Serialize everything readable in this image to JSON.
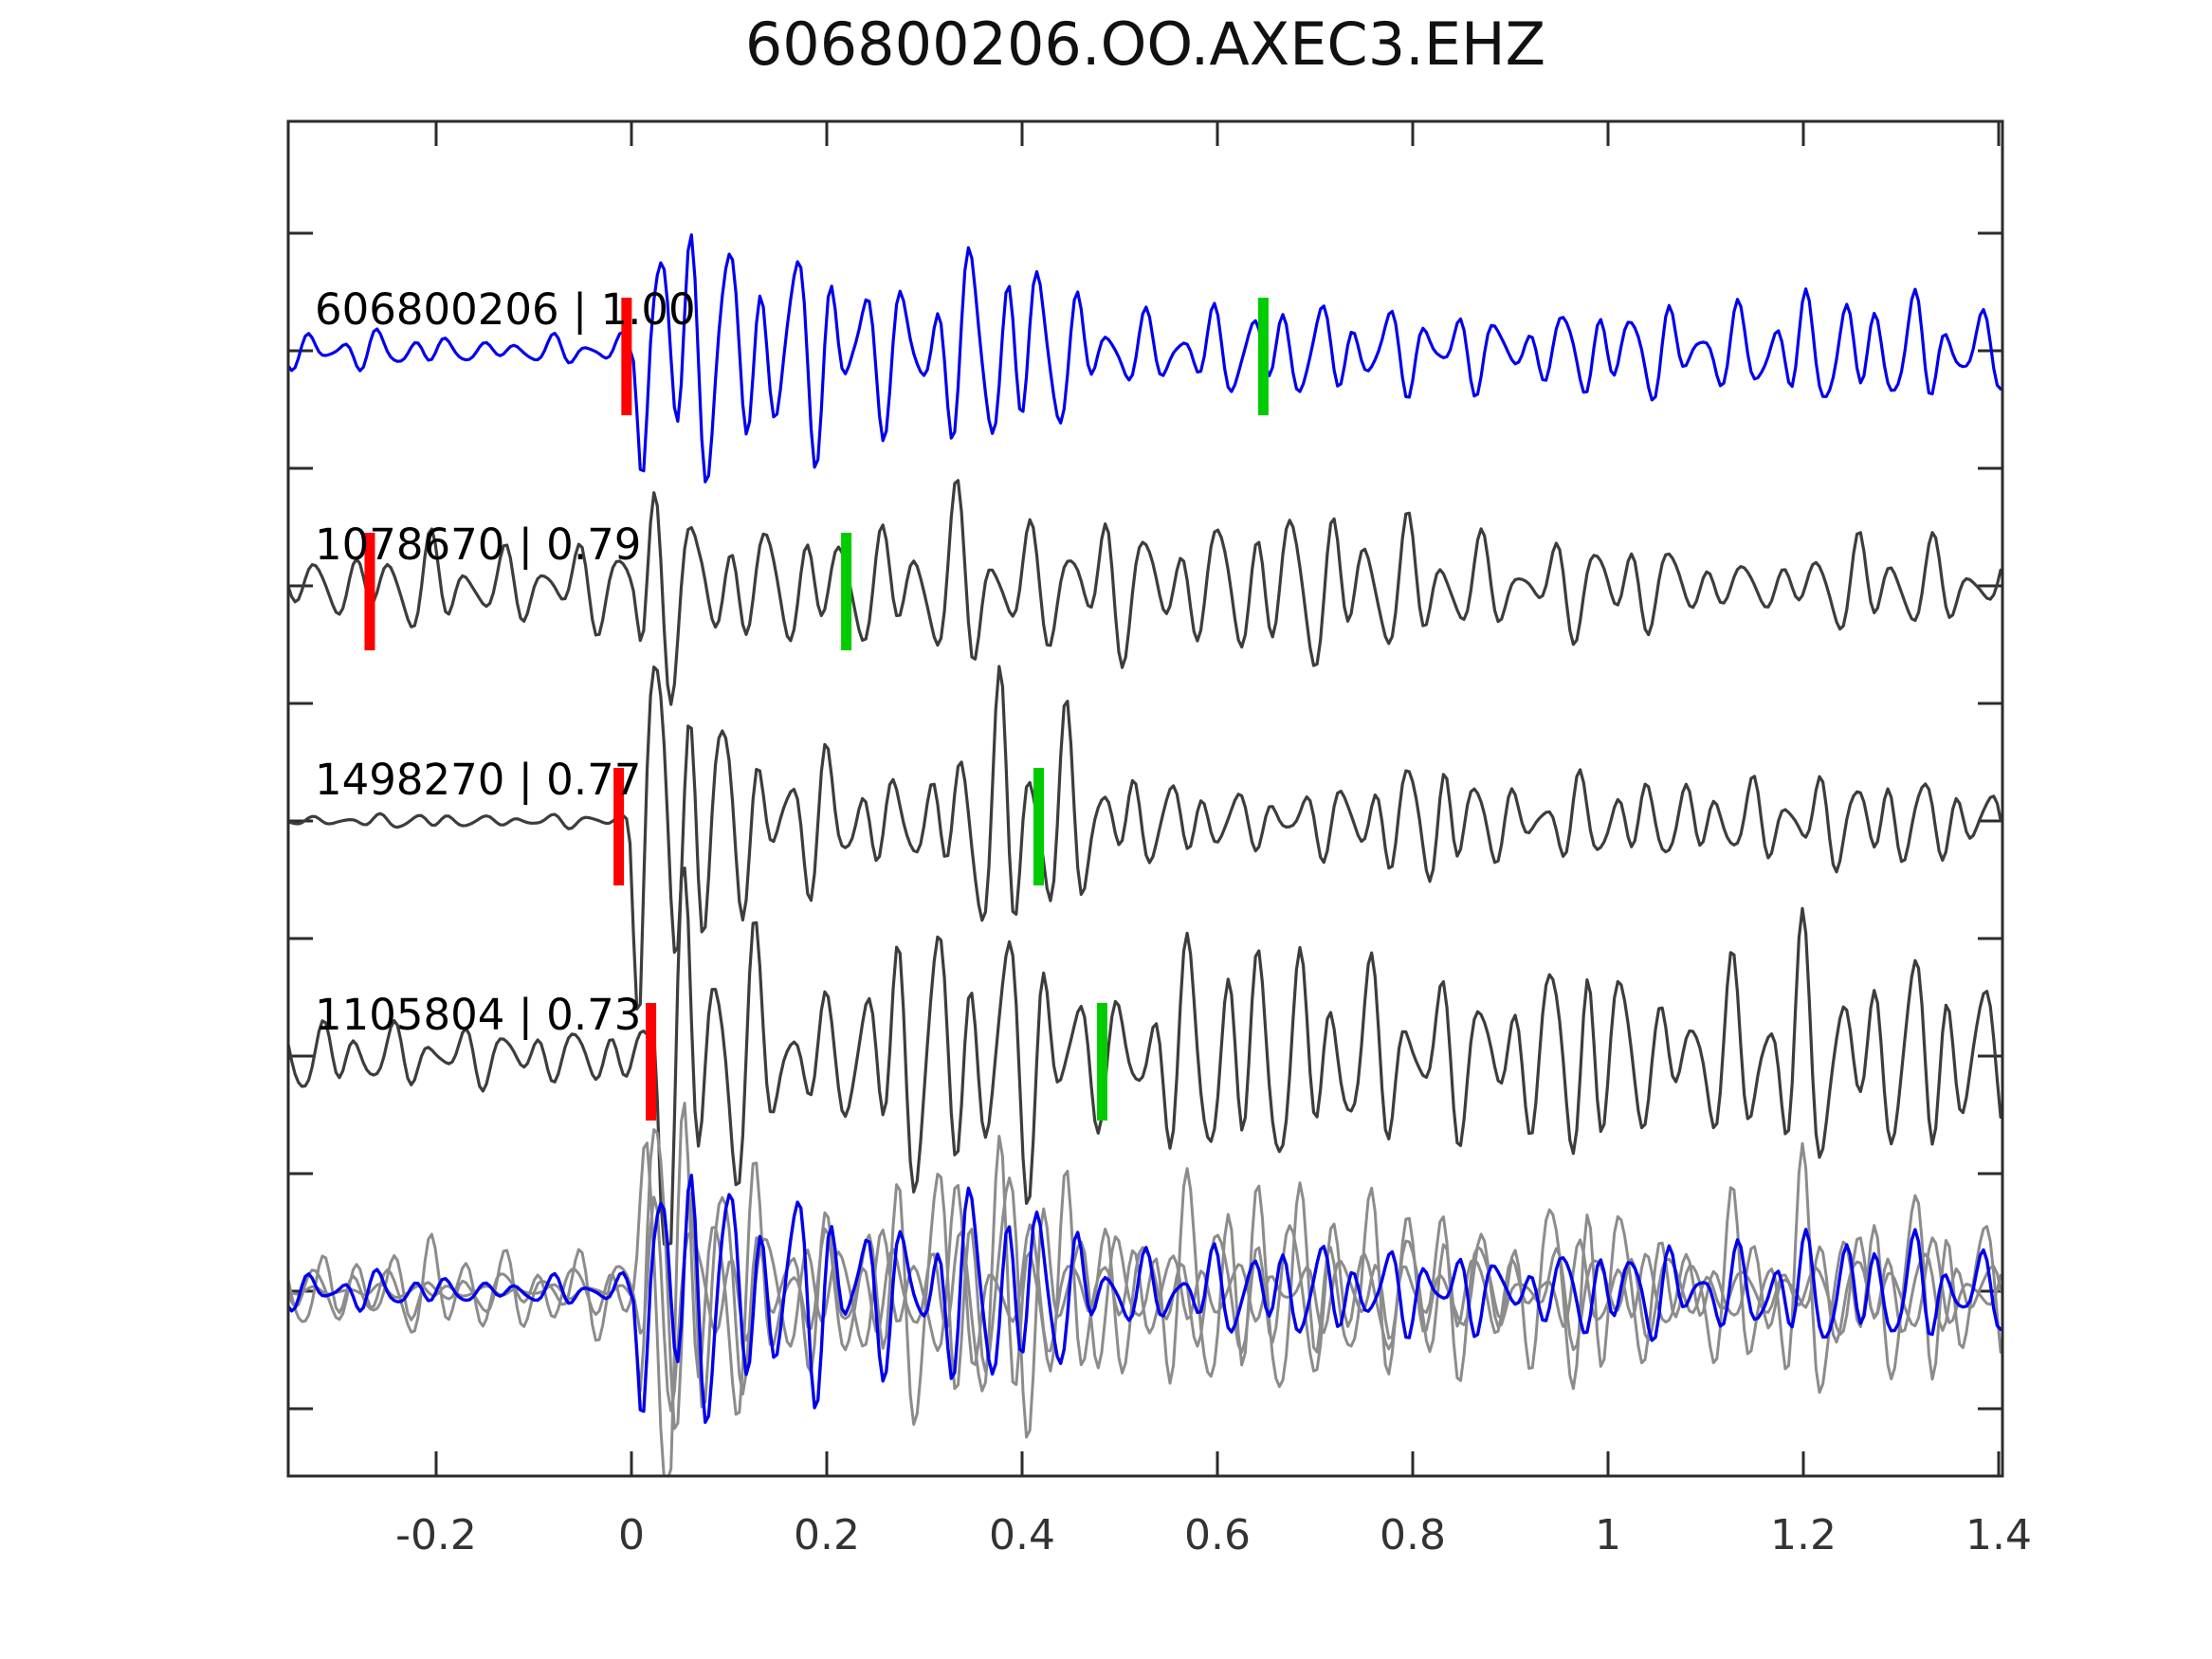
{
  "title": "606800206.OO.AXEC3.EHZ",
  "colors": {
    "blue": "#0000ee",
    "trace_gray": "#3d3d3d",
    "overlay_gray": "#8c8c8c",
    "pick_red": "#ff0000",
    "pick_green": "#00cc00",
    "axis": "#2b2b2b",
    "tick_label": "#333333",
    "label_text": "#000000"
  },
  "chart_data": {
    "type": "line",
    "title": "606800206.OO.AXEC3.EHZ",
    "xlabel": "",
    "ylabel": "",
    "xlim": [
      -0.3515,
      1.404
    ],
    "x_ticks": [
      -0.2,
      0,
      0.2,
      0.4,
      0.6,
      0.8,
      1,
      1.2,
      1.4
    ],
    "x_tick_labels": [
      "-0.2",
      "0",
      "0.2",
      "0.4",
      "0.6",
      "0.8",
      "1",
      "1.2",
      "1.4"
    ],
    "y_tick_interval": 0.5,
    "y_tick_range": [
      -0.5,
      4.5
    ],
    "grid": false,
    "legend": "none",
    "traces": [
      {
        "name": "606800206",
        "similarity": "1.00",
        "label": "606800206 | 1.00",
        "row": 0,
        "color": "blue",
        "picks": {
          "red_x": -0.005,
          "green_x": 0.647
        },
        "synth": {
          "seed": 11,
          "noise": 0.055,
          "onset": 0.003,
          "burst": 0.62,
          "decay": 0.13,
          "sustain": 0.155,
          "freqs": [
            28,
            16.5,
            43
          ],
          "weights": [
            1,
            0.5,
            0.32
          ],
          "bumps": [
            {
              "t": 0.38,
              "a": 0.14,
              "w": 0.06
            },
            {
              "t": 0.62,
              "a": 0.06,
              "w": 0.08
            }
          ]
        }
      },
      {
        "name": "1078670",
        "similarity": "0.79",
        "label": "1078670 | 0.79",
        "row": 1,
        "color": "trace_gray",
        "picks": {
          "red_x": -0.268,
          "green_x": 0.22
        },
        "synth": {
          "seed": 22,
          "noise": 0.13,
          "onset": 0.0,
          "burst": 0.4,
          "decay": 0.22,
          "sustain": 0.17,
          "freqs": [
            26,
            15,
            39
          ],
          "weights": [
            1,
            0.5,
            0.3
          ],
          "bumps": [
            {
              "t": 0.36,
              "a": 0.1,
              "w": 0.08
            },
            {
              "t": 0.62,
              "a": 0.06,
              "w": 0.1
            }
          ]
        }
      },
      {
        "name": "1498270",
        "similarity": "0.77",
        "label": "1498270 | 0.77",
        "row": 2,
        "color": "trace_gray",
        "picks": {
          "red_x": -0.013,
          "green_x": 0.417
        },
        "synth": {
          "seed": 33,
          "noise": 0.022,
          "onset": -0.004,
          "burst": 0.52,
          "decay": 0.11,
          "sustain": 0.13,
          "freqs": [
            28.5,
            17,
            44
          ],
          "weights": [
            1,
            0.45,
            0.3
          ],
          "bumps": [
            {
              "t": 0.4,
              "a": 0.25,
              "w": 0.045
            },
            {
              "t": 0.75,
              "a": 0.1,
              "w": 0.08
            }
          ]
        }
      },
      {
        "name": "1105804",
        "similarity": "0.73",
        "label": "1105804 | 0.73",
        "row": 3,
        "color": "trace_gray",
        "picks": {
          "red_x": 0.02,
          "green_x": 0.482
        },
        "synth": {
          "seed": 44,
          "noise": 0.105,
          "onset": 0.016,
          "burst": 0.5,
          "decay": 0.15,
          "sustain": 0.26,
          "freqs": [
            27,
            16,
            41
          ],
          "weights": [
            1,
            0.5,
            0.3
          ],
          "bumps": [
            {
              "t": 0.58,
              "a": 0.16,
              "w": 0.12
            },
            {
              "t": 1.08,
              "a": 0.1,
              "w": 0.12
            }
          ]
        }
      },
      {
        "name": "overlay",
        "label": "",
        "row": 4,
        "overlay": true,
        "components": [
          {
            "ref": 1,
            "color": "overlay_gray"
          },
          {
            "ref": 2,
            "color": "overlay_gray"
          },
          {
            "ref": 3,
            "color": "overlay_gray"
          },
          {
            "ref": 0,
            "color": "blue"
          }
        ]
      }
    ]
  }
}
